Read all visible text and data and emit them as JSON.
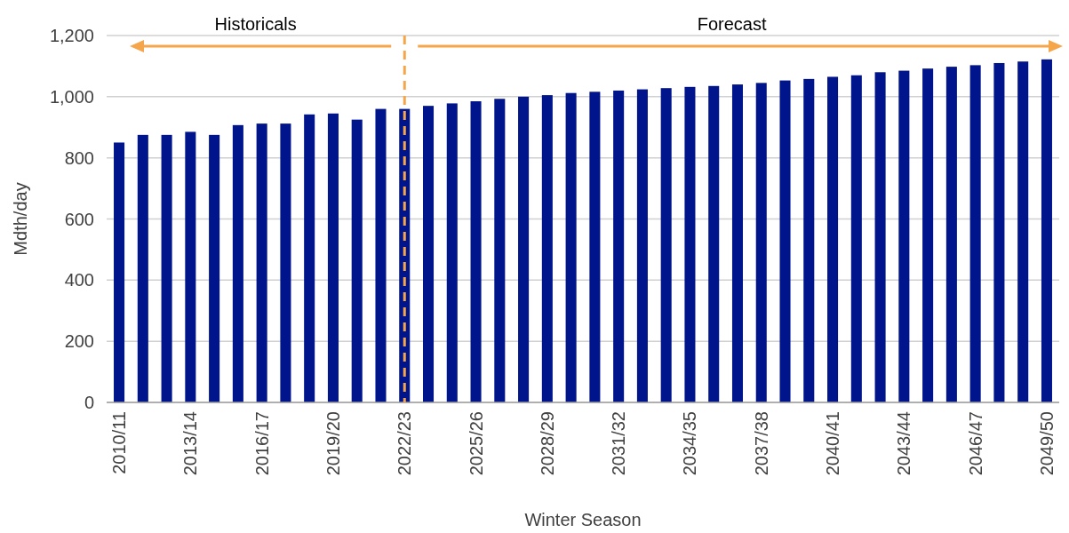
{
  "chart_data": {
    "type": "bar",
    "xlabel": "Winter Season",
    "ylabel": "Mdth/day",
    "categories": [
      "2010/11",
      null,
      null,
      "2013/14",
      null,
      null,
      "2016/17",
      null,
      null,
      "2019/20",
      null,
      null,
      "2022/23",
      null,
      null,
      "2025/26",
      null,
      null,
      "2028/29",
      null,
      null,
      "2031/32",
      null,
      null,
      "2034/35",
      null,
      null,
      "2037/38",
      null,
      null,
      "2040/41",
      null,
      null,
      "2043/44",
      null,
      null,
      "2046/47",
      null,
      null,
      "2049/50"
    ],
    "values": [
      850,
      875,
      875,
      885,
      875,
      907,
      912,
      912,
      942,
      945,
      925,
      960,
      960,
      970,
      978,
      985,
      993,
      1000,
      1005,
      1012,
      1016,
      1020,
      1024,
      1028,
      1032,
      1035,
      1040,
      1045,
      1053,
      1058,
      1065,
      1070,
      1080,
      1085,
      1092,
      1098,
      1103,
      1110,
      1115,
      1122
    ],
    "color": "#00148c",
    "ylim": [
      0,
      1200
    ],
    "yticks": [
      0,
      {
        "value": 200,
        "label": "200"
      },
      {
        "value": 400,
        "label": "400"
      },
      {
        "value": 600,
        "label": "600"
      },
      {
        "value": 800,
        "label": "800"
      },
      {
        "value": 1000,
        "label": "1,000"
      },
      {
        "value": 1200,
        "label": "1,200"
      }
    ],
    "grid": "y",
    "ref_lines": [
      {
        "axis": "x",
        "value": "2022/23",
        "color": "#f5a54a",
        "line_style": "dashed"
      }
    ],
    "annotations": [
      "Historicals",
      "Forecast"
    ]
  }
}
